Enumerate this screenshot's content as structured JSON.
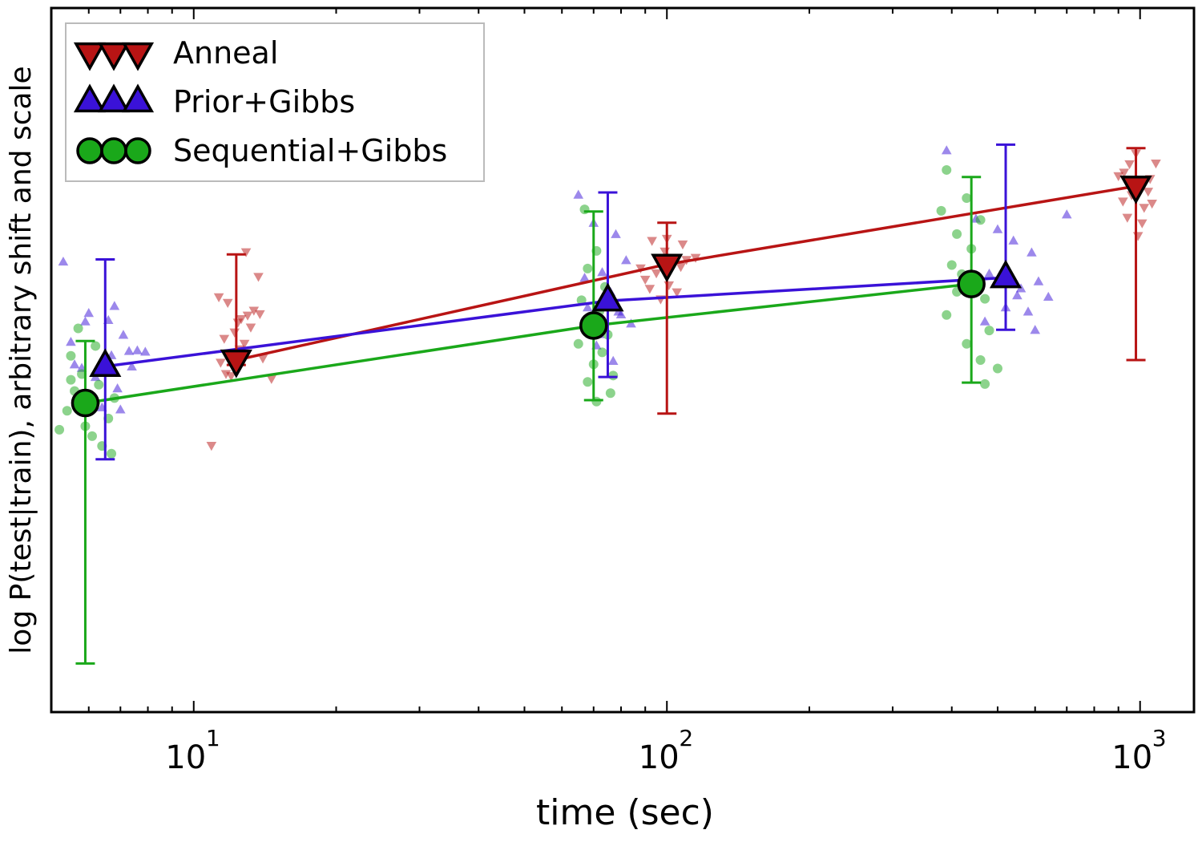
{
  "chart_data": {
    "type": "scatter",
    "title": "",
    "xlabel": "time (sec)",
    "ylabel": "log P(test|train),  arbitrary shift and scale",
    "xscale": "log",
    "xlim": [
      5,
      1300
    ],
    "ylim": [
      0,
      100
    ],
    "x_ticks": [
      {
        "base": "10",
        "exp": "1",
        "value": 10
      },
      {
        "base": "10",
        "exp": "2",
        "value": 100
      },
      {
        "base": "10",
        "exp": "3",
        "value": 1000
      }
    ],
    "legend_position": "top-left",
    "series": [
      {
        "name": "Anneal",
        "color": "#b81414",
        "marker": "triangle-down",
        "x": [
          12.3,
          100,
          980
        ],
        "y": [
          50.0,
          63.6,
          74.7
        ],
        "err_low": [
          49.3,
          42.4,
          50.0
        ],
        "err_high": [
          65.0,
          69.5,
          80.1
        ],
        "points": [
          [
            11.6,
            53.1
          ],
          [
            12.4,
            55.4
          ],
          [
            13.0,
            56.4
          ],
          [
            11.8,
            58.2
          ],
          [
            13.4,
            57.1
          ],
          [
            12.2,
            54.0
          ],
          [
            12.8,
            52.4
          ],
          [
            11.4,
            49.7
          ],
          [
            14.0,
            50.3
          ],
          [
            12.5,
            51.6
          ],
          [
            11.3,
            59.0
          ],
          [
            13.7,
            61.9
          ],
          [
            12.0,
            47.8
          ],
          [
            14.6,
            47.4
          ],
          [
            10.9,
            37.9
          ],
          [
            12.6,
            55.9
          ],
          [
            13.2,
            54.7
          ],
          [
            11.7,
            48.1
          ],
          [
            12.9,
            65.4
          ],
          [
            13.8,
            56.6
          ],
          [
            95,
            62.4
          ],
          [
            103,
            64.6
          ],
          [
            108,
            66.5
          ],
          [
            92,
            60.2
          ],
          [
            100,
            67.3
          ],
          [
            97,
            58.7
          ],
          [
            110,
            64.3
          ],
          [
            88,
            63.1
          ],
          [
            105,
            59.7
          ],
          [
            99,
            65.5
          ],
          [
            115,
            64.6
          ],
          [
            93,
            67.0
          ],
          [
            101,
            60.7
          ],
          [
            107,
            63.3
          ],
          [
            90,
            61.5
          ],
          [
            950,
            77.9
          ],
          [
            1000,
            74.5
          ],
          [
            1050,
            75.8
          ],
          [
            920,
            72.6
          ],
          [
            980,
            79.4
          ],
          [
            1020,
            71.7
          ],
          [
            900,
            76.2
          ],
          [
            1080,
            78.0
          ],
          [
            960,
            73.5
          ],
          [
            1010,
            69.5
          ],
          [
            940,
            70.3
          ],
          [
            990,
            67.7
          ],
          [
            1060,
            72.3
          ],
          [
            925,
            76.7
          ],
          [
            1040,
            74.0
          ]
        ]
      },
      {
        "name": "Prior+Gibbs",
        "color": "#3a12d8",
        "marker": "triangle-up",
        "x": [
          6.5,
          75,
          520
        ],
        "y": [
          49.1,
          58.4,
          61.7
        ],
        "err_low": [
          35.9,
          47.6,
          54.3
        ],
        "err_high": [
          64.3,
          73.8,
          80.6
        ],
        "points": [
          [
            5.3,
            63.9
          ],
          [
            6.0,
            56.6
          ],
          [
            7.1,
            53.5
          ],
          [
            5.9,
            55.4
          ],
          [
            6.7,
            50.6
          ],
          [
            5.5,
            52.5
          ],
          [
            7.3,
            51.2
          ],
          [
            6.2,
            47.5
          ],
          [
            6.9,
            45.9
          ],
          [
            5.8,
            48.8
          ],
          [
            7.6,
            51.3
          ],
          [
            6.4,
            43.2
          ],
          [
            7.0,
            42.9
          ],
          [
            5.6,
            49.3
          ],
          [
            6.6,
            55.6
          ],
          [
            7.9,
            51.1
          ],
          [
            6.1,
            44.5
          ],
          [
            7.4,
            49.0
          ],
          [
            6.8,
            57.6
          ],
          [
            65,
            73.4
          ],
          [
            70,
            69.4
          ],
          [
            78,
            67.8
          ],
          [
            73,
            62.4
          ],
          [
            82,
            64.1
          ],
          [
            76,
            59.6
          ],
          [
            68,
            57.4
          ],
          [
            80,
            56.4
          ],
          [
            74,
            54.5
          ],
          [
            71,
            52.0
          ],
          [
            79,
            56.8
          ],
          [
            67,
            61.6
          ],
          [
            84,
            55.1
          ],
          [
            77,
            49.8
          ],
          [
            72,
            53.6
          ],
          [
            390,
            79.7
          ],
          [
            450,
            70.0
          ],
          [
            500,
            68.5
          ],
          [
            540,
            66.9
          ],
          [
            590,
            65.2
          ],
          [
            610,
            61.1
          ],
          [
            560,
            60.1
          ],
          [
            480,
            62.2
          ],
          [
            520,
            57.4
          ],
          [
            640,
            58.9
          ],
          [
            580,
            56.8
          ],
          [
            470,
            55.4
          ],
          [
            600,
            54.2
          ],
          [
            700,
            70.6
          ],
          [
            550,
            59.1
          ]
        ]
      },
      {
        "name": "Sequential+Gibbs",
        "color": "#1aa81a",
        "marker": "circle",
        "x": [
          5.9,
          70,
          440
        ],
        "y": [
          43.9,
          54.9,
          60.8
        ],
        "err_low": [
          6.9,
          44.3,
          46.8
        ],
        "err_high": [
          52.7,
          71.1,
          76.0
        ],
        "points": [
          [
            5.7,
            54.5
          ],
          [
            6.2,
            52.0
          ],
          [
            5.5,
            50.6
          ],
          [
            6.5,
            49.6
          ],
          [
            5.8,
            48.0
          ],
          [
            6.3,
            46.5
          ],
          [
            5.6,
            45.6
          ],
          [
            6.8,
            44.6
          ],
          [
            6.0,
            43.4
          ],
          [
            5.4,
            42.8
          ],
          [
            6.6,
            41.7
          ],
          [
            5.9,
            40.6
          ],
          [
            6.1,
            39.2
          ],
          [
            5.2,
            40.1
          ],
          [
            6.4,
            37.8
          ],
          [
            6.7,
            36.7
          ],
          [
            5.5,
            47.2
          ],
          [
            6.2,
            44.0
          ],
          [
            67,
            71.4
          ],
          [
            71,
            65.5
          ],
          [
            68,
            63.0
          ],
          [
            74,
            60.4
          ],
          [
            66,
            58.5
          ],
          [
            72,
            56.9
          ],
          [
            69,
            55.6
          ],
          [
            75,
            53.6
          ],
          [
            65,
            52.3
          ],
          [
            73,
            51.1
          ],
          [
            70,
            49.4
          ],
          [
            77,
            47.8
          ],
          [
            68,
            46.9
          ],
          [
            76,
            45.3
          ],
          [
            71,
            44.1
          ],
          [
            390,
            77.0
          ],
          [
            430,
            73.0
          ],
          [
            380,
            71.2
          ],
          [
            460,
            69.9
          ],
          [
            410,
            67.9
          ],
          [
            440,
            65.8
          ],
          [
            400,
            63.5
          ],
          [
            420,
            62.2
          ],
          [
            450,
            60.5
          ],
          [
            470,
            58.7
          ],
          [
            390,
            56.4
          ],
          [
            480,
            54.2
          ],
          [
            430,
            52.3
          ],
          [
            460,
            50.0
          ],
          [
            470,
            46.6
          ],
          [
            500,
            48.8
          ],
          [
            410,
            59.7
          ]
        ]
      }
    ]
  }
}
